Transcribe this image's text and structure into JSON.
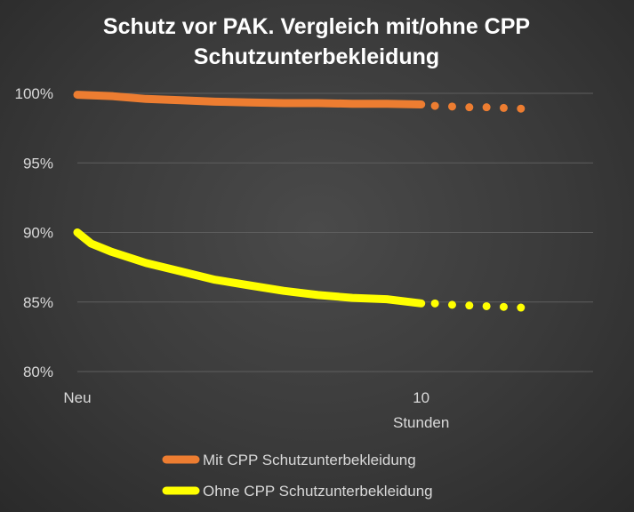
{
  "chart_data": {
    "type": "line",
    "title_lines": [
      "Schutz vor PAK. Vergleich mit/ohne CPP",
      "Schutzunterbekleidung"
    ],
    "xlabel": "Stunden",
    "x_tick_labels": [
      {
        "x": 0,
        "label": "Neu"
      },
      {
        "x": 10,
        "label": "10"
      }
    ],
    "xlim": [
      0,
      15
    ],
    "ylim": [
      80,
      100
    ],
    "y_ticks": [
      80,
      85,
      90,
      95,
      100
    ],
    "y_tick_labels": [
      "80%",
      "85%",
      "90%",
      "95%",
      "100%"
    ],
    "grid": true,
    "legend_position": "bottom",
    "series": [
      {
        "name": "Mit CPP Schutzunterbekleidung",
        "color": "#ed7d31",
        "x": [
          0,
          1,
          2,
          3,
          4,
          5,
          6,
          7,
          8,
          9,
          10
        ],
        "values": [
          99.9,
          99.8,
          99.6,
          99.5,
          99.4,
          99.35,
          99.3,
          99.3,
          99.25,
          99.25,
          99.2
        ],
        "projection_x": [
          10.4,
          10.9,
          11.4,
          11.9,
          12.4,
          12.9
        ],
        "projection_values": [
          99.1,
          99.05,
          99.0,
          99.0,
          98.95,
          98.9
        ]
      },
      {
        "name": "Ohne CPP Schutzunterbekleidung",
        "color": "#ffff00",
        "x": [
          0,
          0.4,
          1,
          2,
          3,
          4,
          5,
          6,
          7,
          8,
          9,
          10
        ],
        "values": [
          90.0,
          89.2,
          88.6,
          87.8,
          87.2,
          86.6,
          86.2,
          85.8,
          85.5,
          85.3,
          85.2,
          84.9
        ],
        "projection_x": [
          10.4,
          10.9,
          11.4,
          11.9,
          12.4,
          12.9
        ],
        "projection_values": [
          84.9,
          84.8,
          84.75,
          84.7,
          84.65,
          84.6
        ]
      }
    ]
  }
}
